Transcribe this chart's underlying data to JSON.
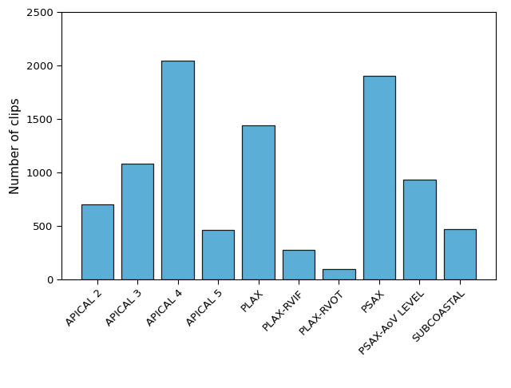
{
  "categories": [
    "APICAL 2",
    "APICAL 3",
    "APICAL 4",
    "APICAL 5",
    "PLAX",
    "PLAX-RVIF",
    "PLAX-RVOT",
    "PSAX",
    "PSAX-AoV LEVEL",
    "SUBCOASTAL"
  ],
  "values": [
    700,
    1080,
    2040,
    460,
    1440,
    275,
    100,
    1900,
    935,
    470
  ],
  "bar_color": "#5BAFD6",
  "bar_edge_color": "#1a1a1a",
  "ylabel": "Number of clips",
  "ylim": [
    0,
    2500
  ],
  "yticks": [
    0,
    500,
    1000,
    1500,
    2000,
    2500
  ],
  "background_color": "#ffffff",
  "ylabel_fontsize": 11,
  "tick_fontsize": 9.5,
  "label_rotation": 45
}
